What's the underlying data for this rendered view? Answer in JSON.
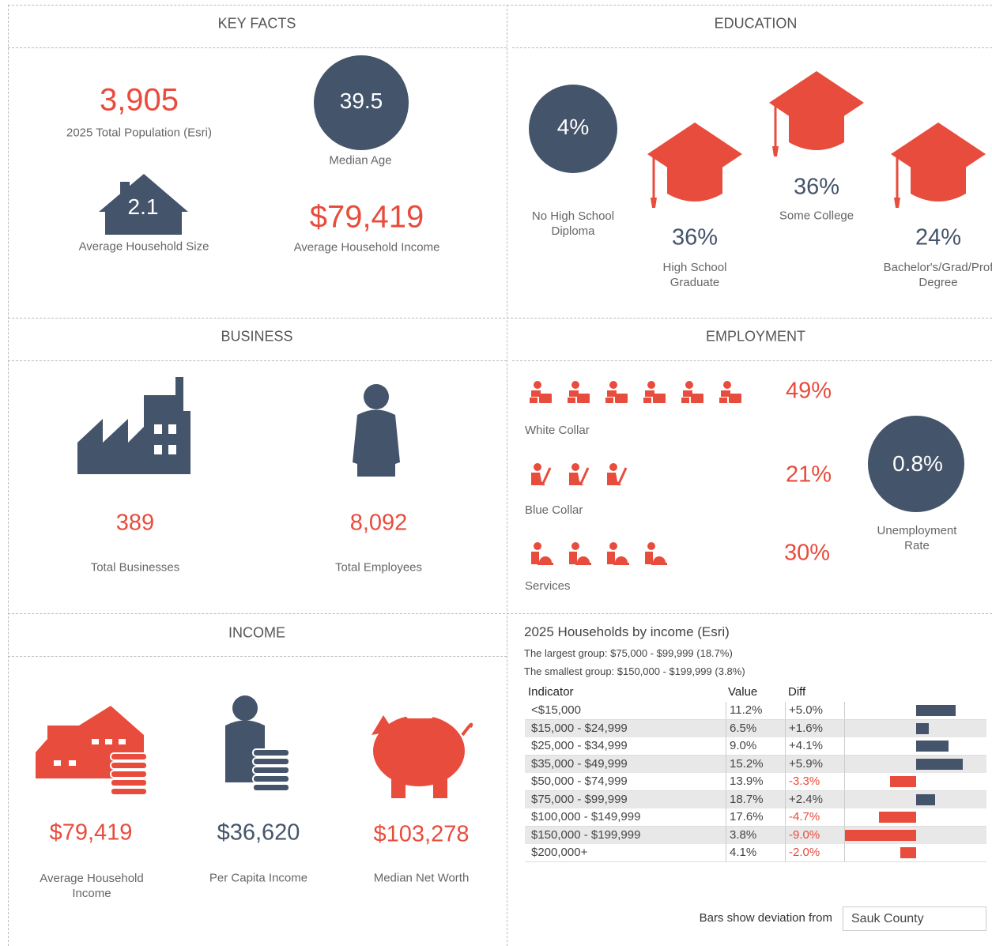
{
  "key_facts": {
    "title": "KEY FACTS",
    "population": {
      "value": "3,905",
      "label": "2025 Total Population (Esri)"
    },
    "median_age": {
      "value": "39.5",
      "label": "Median Age"
    },
    "household_size": {
      "value": "2.1",
      "label": "Average Household Size"
    },
    "household_income": {
      "value": "$79,419",
      "label": "Average Household Income"
    }
  },
  "education": {
    "title": "EDUCATION",
    "items": [
      {
        "value": "4%",
        "label": "No High School Diploma"
      },
      {
        "value": "36%",
        "label": "High School Graduate"
      },
      {
        "value": "36%",
        "label": "Some College"
      },
      {
        "value": "24%",
        "label": "Bachelor's/Grad/Prof Degree"
      }
    ]
  },
  "business": {
    "title": "BUSINESS",
    "businesses": {
      "value": "389",
      "label": "Total Businesses"
    },
    "employees": {
      "value": "8,092",
      "label": "Total Employees"
    }
  },
  "employment": {
    "title": "EMPLOYMENT",
    "white_collar": {
      "value": "49%",
      "label": "White Collar"
    },
    "blue_collar": {
      "value": "21%",
      "label": "Blue Collar"
    },
    "services": {
      "value": "30%",
      "label": "Services"
    },
    "unemployment": {
      "value": "0.8%",
      "label": "Unemployment Rate"
    }
  },
  "income": {
    "title": "INCOME",
    "household_income": {
      "value": "$79,419",
      "label": "Average Household Income"
    },
    "per_capita": {
      "value": "$36,620",
      "label": "Per Capita Income"
    },
    "net_worth": {
      "value": "$103,278",
      "label": "Median Net Worth"
    }
  },
  "households": {
    "title": "2025 Households by income (Esri)",
    "largest": "The largest group: $75,000 - $99,999 (18.7%)",
    "smallest": "The smallest group: $150,000 - $199,999 (3.8%)",
    "columns": [
      "Indicator",
      "Value",
      "Diff"
    ],
    "rows": [
      {
        "indicator": "<$15,000",
        "value": "11.2%",
        "diff": 5.0,
        "diff_label": "+5.0%"
      },
      {
        "indicator": "$15,000 - $24,999",
        "value": "6.5%",
        "diff": 1.6,
        "diff_label": "+1.6%"
      },
      {
        "indicator": "$25,000 - $34,999",
        "value": "9.0%",
        "diff": 4.1,
        "diff_label": "+4.1%"
      },
      {
        "indicator": "$35,000 - $49,999",
        "value": "15.2%",
        "diff": 5.9,
        "diff_label": "+5.9%"
      },
      {
        "indicator": "$50,000 - $74,999",
        "value": "13.9%",
        "diff": -3.3,
        "diff_label": "-3.3%"
      },
      {
        "indicator": "$75,000 - $99,999",
        "value": "18.7%",
        "diff": 2.4,
        "diff_label": "+2.4%"
      },
      {
        "indicator": "$100,000 - $149,999",
        "value": "17.6%",
        "diff": -4.7,
        "diff_label": "-4.7%"
      },
      {
        "indicator": "$150,000 - $199,999",
        "value": "3.8%",
        "diff": -9.0,
        "diff_label": "-9.0%"
      },
      {
        "indicator": "$200,000+",
        "value": "4.1%",
        "diff": -2.0,
        "diff_label": "-2.0%"
      }
    ],
    "footer": "Bars show deviation from",
    "compare": "Sauk County"
  }
}
